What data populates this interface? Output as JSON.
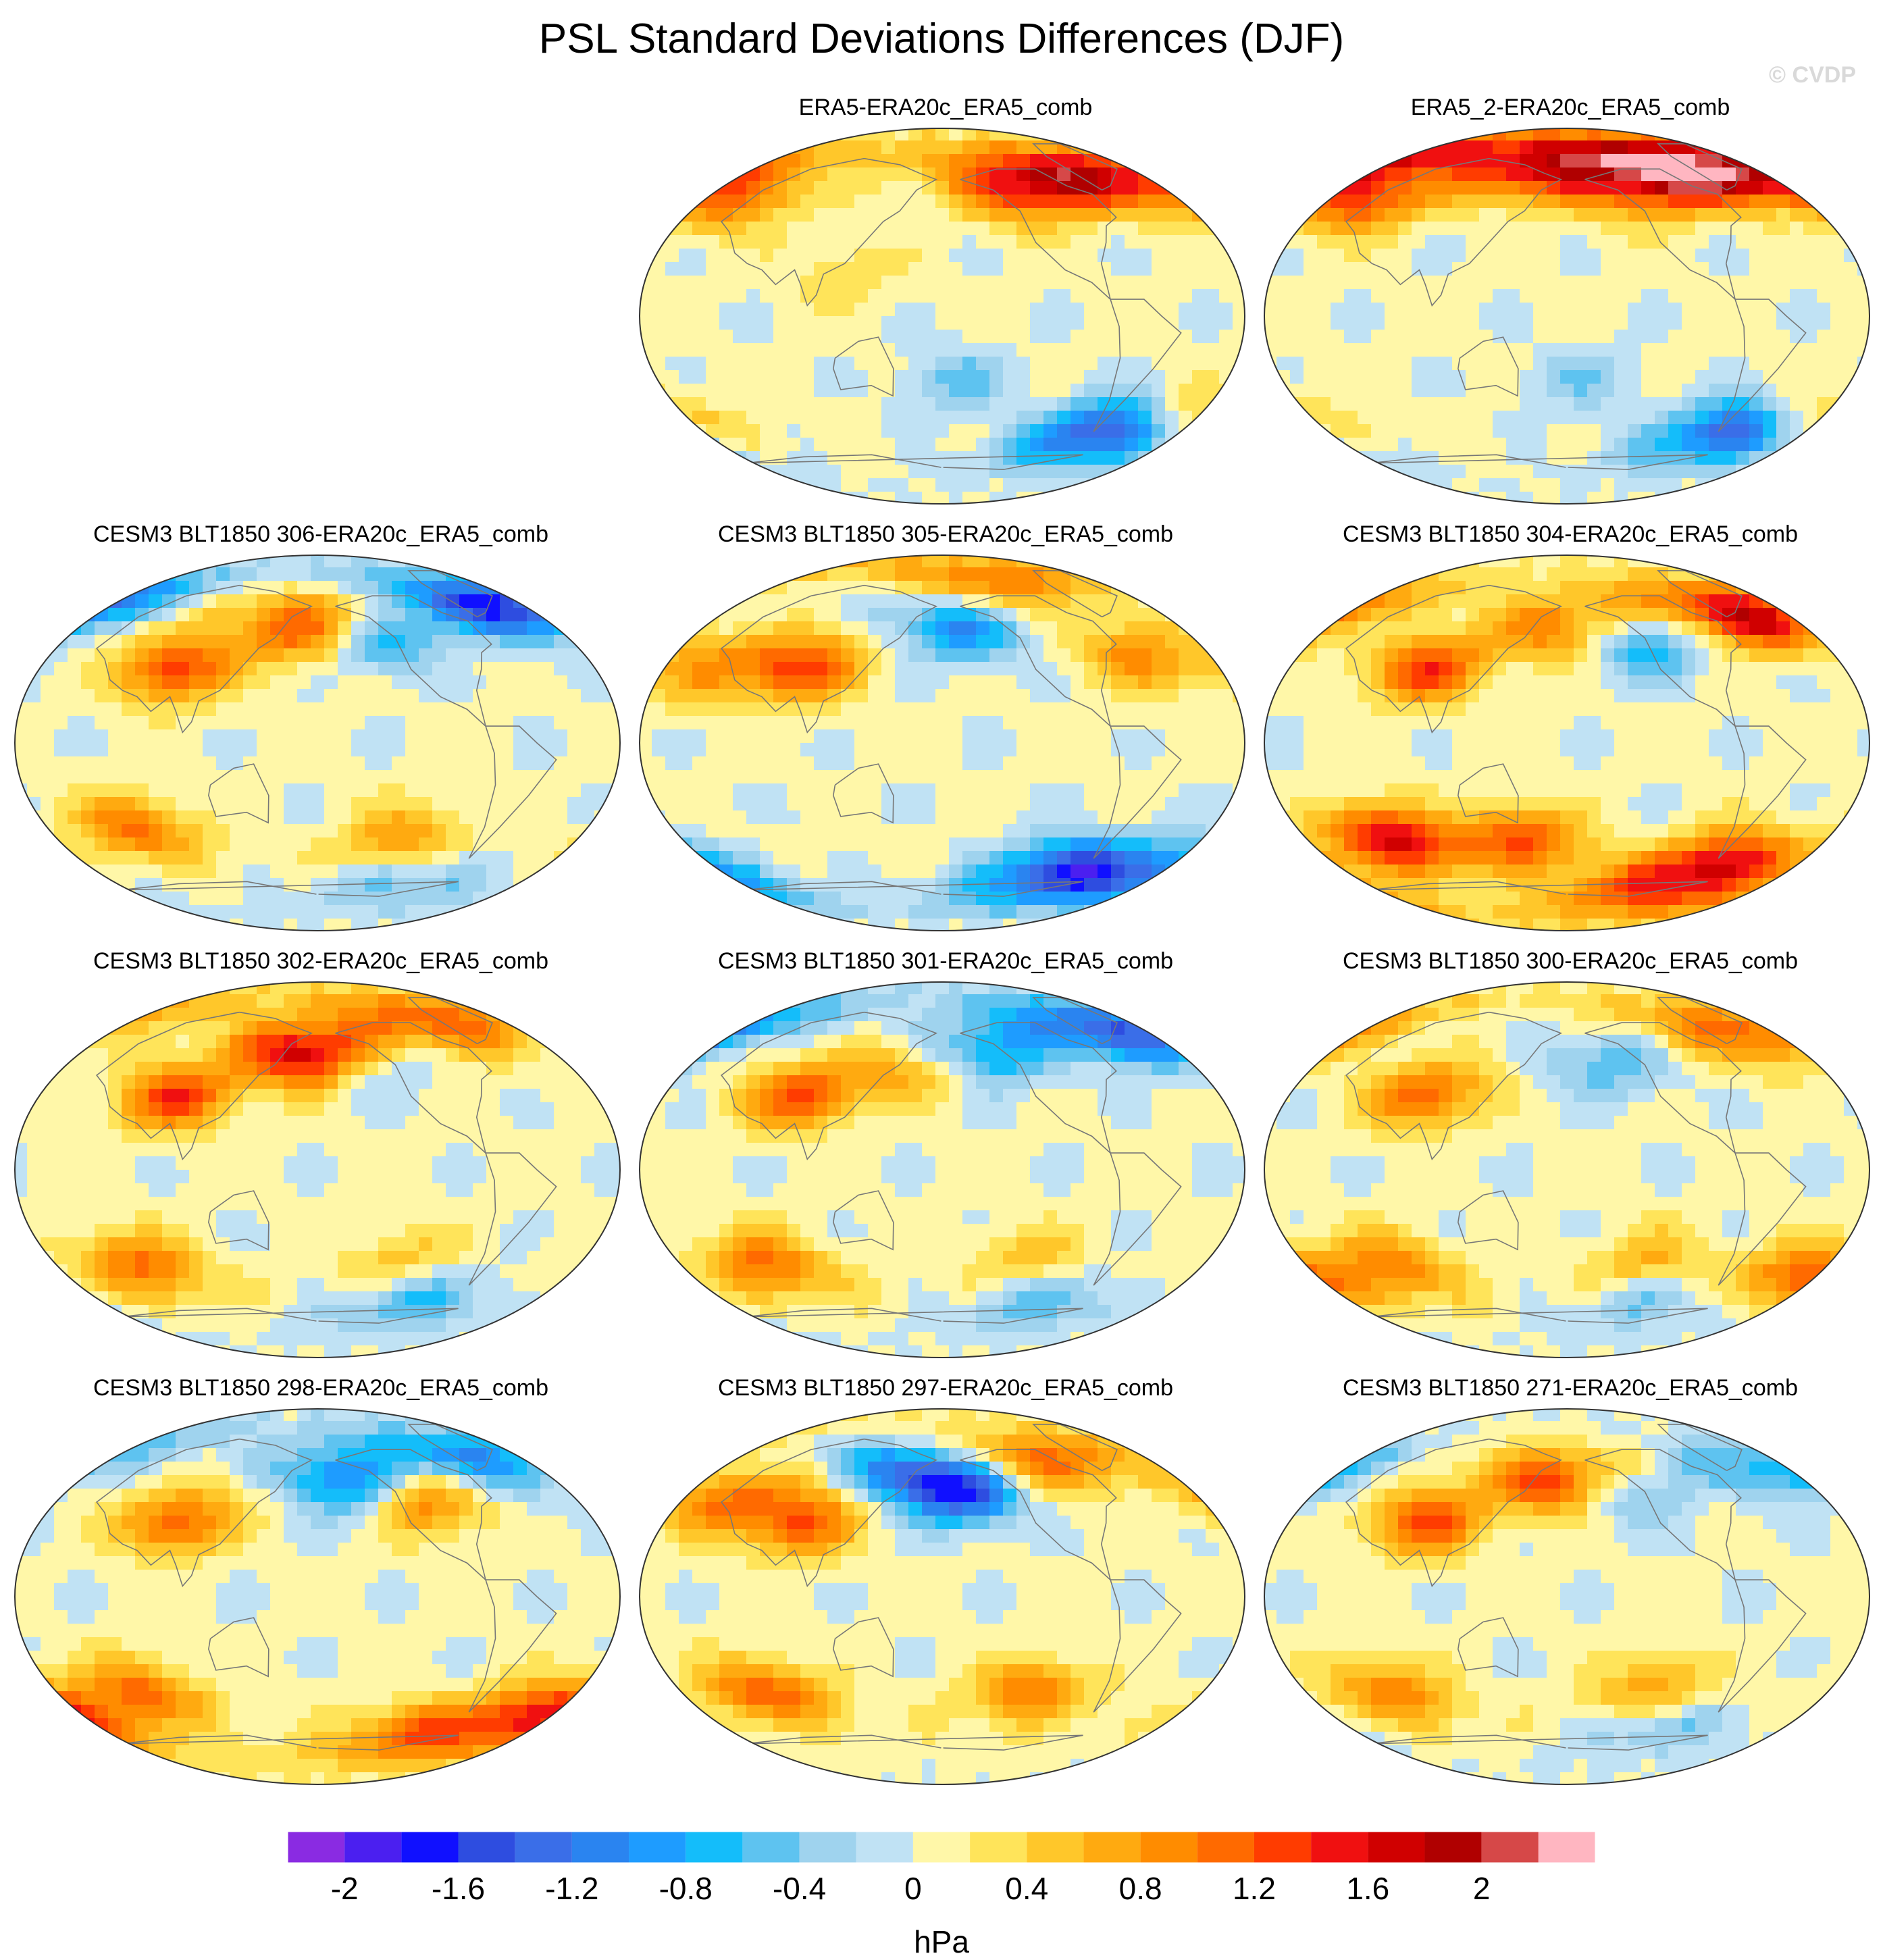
{
  "figure": {
    "title": "PSL Standard Deviations Differences (DJF)",
    "watermark": "© CVDP",
    "units": "hPa"
  },
  "colorbar": {
    "tick_labels": [
      "-2",
      "-1.6",
      "-1.2",
      "-0.8",
      "-0.4",
      "0",
      "0.4",
      "0.8",
      "1.2",
      "1.6",
      "2"
    ],
    "levels": [
      -2.2,
      -2.0,
      -1.8,
      -1.6,
      -1.4,
      -1.2,
      -1.0,
      -0.8,
      -0.6,
      -0.4,
      -0.2,
      0,
      0.2,
      0.4,
      0.6,
      0.8,
      1.0,
      1.2,
      1.4,
      1.6,
      1.8,
      2.0,
      2.2
    ],
    "colors": [
      "#8a2be2",
      "#4b1ff0",
      "#1010ff",
      "#2e4de0",
      "#3a6ee8",
      "#2a84f0",
      "#1e9cff",
      "#14bdfa",
      "#5ec3f0",
      "#9fd3ee",
      "#c0e2f4",
      "#fff7a8",
      "#ffe45a",
      "#ffc72a",
      "#ffaa10",
      "#ff8c00",
      "#ff6a00",
      "#ff3c00",
      "#f01010",
      "#d00000",
      "#b00000",
      "#d64848",
      "#ffb6c1"
    ]
  },
  "panels": [
    {
      "title": "ERA5-ERA20c_ERA5_comb",
      "col": 1,
      "row": 0,
      "blobs": [
        [
          -120,
          60,
          1.3
        ],
        [
          -50,
          65,
          1.2
        ],
        [
          30,
          55,
          0.9
        ],
        [
          -60,
          -55,
          -1.7
        ],
        [
          -10,
          -50,
          0.6
        ],
        [
          120,
          20,
          0.3
        ],
        [
          -170,
          -30,
          -0.5
        ]
      ]
    },
    {
      "title": "ERA5_2-ERA20c_ERA5_comb",
      "col": 2,
      "row": 0,
      "blobs": [
        [
          -60,
          68,
          1.9
        ],
        [
          35,
          55,
          1.2
        ],
        [
          -130,
          60,
          1.0
        ],
        [
          -60,
          -55,
          -1.5
        ],
        [
          -10,
          -50,
          0.5
        ],
        [
          150,
          70,
          1.2
        ],
        [
          -170,
          -30,
          -0.4
        ]
      ]
    },
    {
      "title": "CESM3 BLT1850 306-ERA20c_ERA5_comb",
      "col": 0,
      "row": 1,
      "blobs": [
        [
          175,
          55,
          1.4
        ],
        [
          -140,
          50,
          -1.0
        ],
        [
          -30,
          65,
          -1.7
        ],
        [
          90,
          35,
          1.3
        ],
        [
          60,
          -40,
          1.0
        ],
        [
          -120,
          -45,
          0.8
        ],
        [
          -100,
          -65,
          -0.6
        ]
      ]
    },
    {
      "title": "CESM3 BLT1850 305-ERA20c_ERA5_comb",
      "col": 1,
      "row": 1,
      "blobs": [
        [
          -165,
          55,
          -1.1
        ],
        [
          -120,
          75,
          1.0
        ],
        [
          90,
          35,
          1.3
        ],
        [
          -90,
          -60,
          -1.4
        ],
        [
          -20,
          -60,
          -1.0
        ],
        [
          30,
          35,
          0.7
        ],
        [
          -50,
          40,
          0.8
        ]
      ]
    },
    {
      "title": "CESM3 BLT1850 304-ERA20c_ERA5_comb",
      "col": 2,
      "row": 1,
      "blobs": [
        [
          -40,
          60,
          1.7
        ],
        [
          175,
          55,
          1.0
        ],
        [
          90,
          35,
          1.3
        ],
        [
          60,
          -45,
          1.6
        ],
        [
          150,
          -45,
          1.2
        ],
        [
          -60,
          -55,
          1.3
        ],
        [
          -100,
          -70,
          1.0
        ],
        [
          -130,
          45,
          -0.8
        ]
      ]
    },
    {
      "title": "CESM3 BLT1850 302-ERA20c_ERA5_comb",
      "col": 0,
      "row": 2,
      "blobs": [
        [
          175,
          55,
          1.9
        ],
        [
          -60,
          70,
          1.0
        ],
        [
          90,
          35,
          1.3
        ],
        [
          60,
          -45,
          1.0
        ],
        [
          -120,
          -45,
          0.6
        ],
        [
          -150,
          50,
          -0.5
        ],
        [
          -100,
          -60,
          -0.8
        ]
      ]
    },
    {
      "title": "CESM3 BLT1850 301-ERA20c_ERA5_comb",
      "col": 1,
      "row": 2,
      "blobs": [
        [
          -155,
          55,
          -1.3
        ],
        [
          -30,
          65,
          -1.4
        ],
        [
          170,
          50,
          0.9
        ],
        [
          90,
          35,
          1.2
        ],
        [
          60,
          -45,
          1.0
        ],
        [
          -120,
          -45,
          0.6
        ],
        [
          -100,
          -60,
          -0.7
        ]
      ]
    },
    {
      "title": "CESM3 BLT1850 300-ERA20c_ERA5_comb",
      "col": 2,
      "row": 2,
      "blobs": [
        [
          -40,
          65,
          1.1
        ],
        [
          -150,
          50,
          -0.6
        ],
        [
          90,
          35,
          1.1
        ],
        [
          60,
          -45,
          0.9
        ],
        [
          -120,
          -45,
          0.7
        ],
        [
          -20,
          -50,
          1.0
        ],
        [
          -100,
          -60,
          -0.7
        ]
      ]
    },
    {
      "title": "CESM3 BLT1850 298-ERA20c_ERA5_comb",
      "col": 0,
      "row": 3,
      "blobs": [
        [
          -155,
          55,
          -1.3
        ],
        [
          -40,
          65,
          -1.0
        ],
        [
          -110,
          45,
          1.0
        ],
        [
          90,
          35,
          1.1
        ],
        [
          60,
          -45,
          1.0
        ],
        [
          -20,
          -55,
          1.3
        ],
        [
          -100,
          -65,
          0.9
        ]
      ]
    },
    {
      "title": "CESM3 BLT1850 297-ERA20c_ERA5_comb",
      "col": 1,
      "row": 3,
      "blobs": [
        [
          -165,
          50,
          -1.6
        ],
        [
          -100,
          65,
          1.3
        ],
        [
          30,
          45,
          0.9
        ],
        [
          90,
          35,
          1.2
        ],
        [
          60,
          -45,
          1.1
        ],
        [
          -120,
          -45,
          0.9
        ],
        [
          150,
          60,
          -0.9
        ]
      ]
    },
    {
      "title": "CESM3 BLT1850 271-ERA20c_ERA5_comb",
      "col": 2,
      "row": 3,
      "blobs": [
        [
          175,
          55,
          1.4
        ],
        [
          -140,
          50,
          -0.7
        ],
        [
          -20,
          60,
          -0.8
        ],
        [
          90,
          35,
          1.2
        ],
        [
          60,
          -45,
          0.9
        ],
        [
          -120,
          -45,
          0.8
        ],
        [
          -100,
          -60,
          -0.6
        ]
      ]
    }
  ]
}
